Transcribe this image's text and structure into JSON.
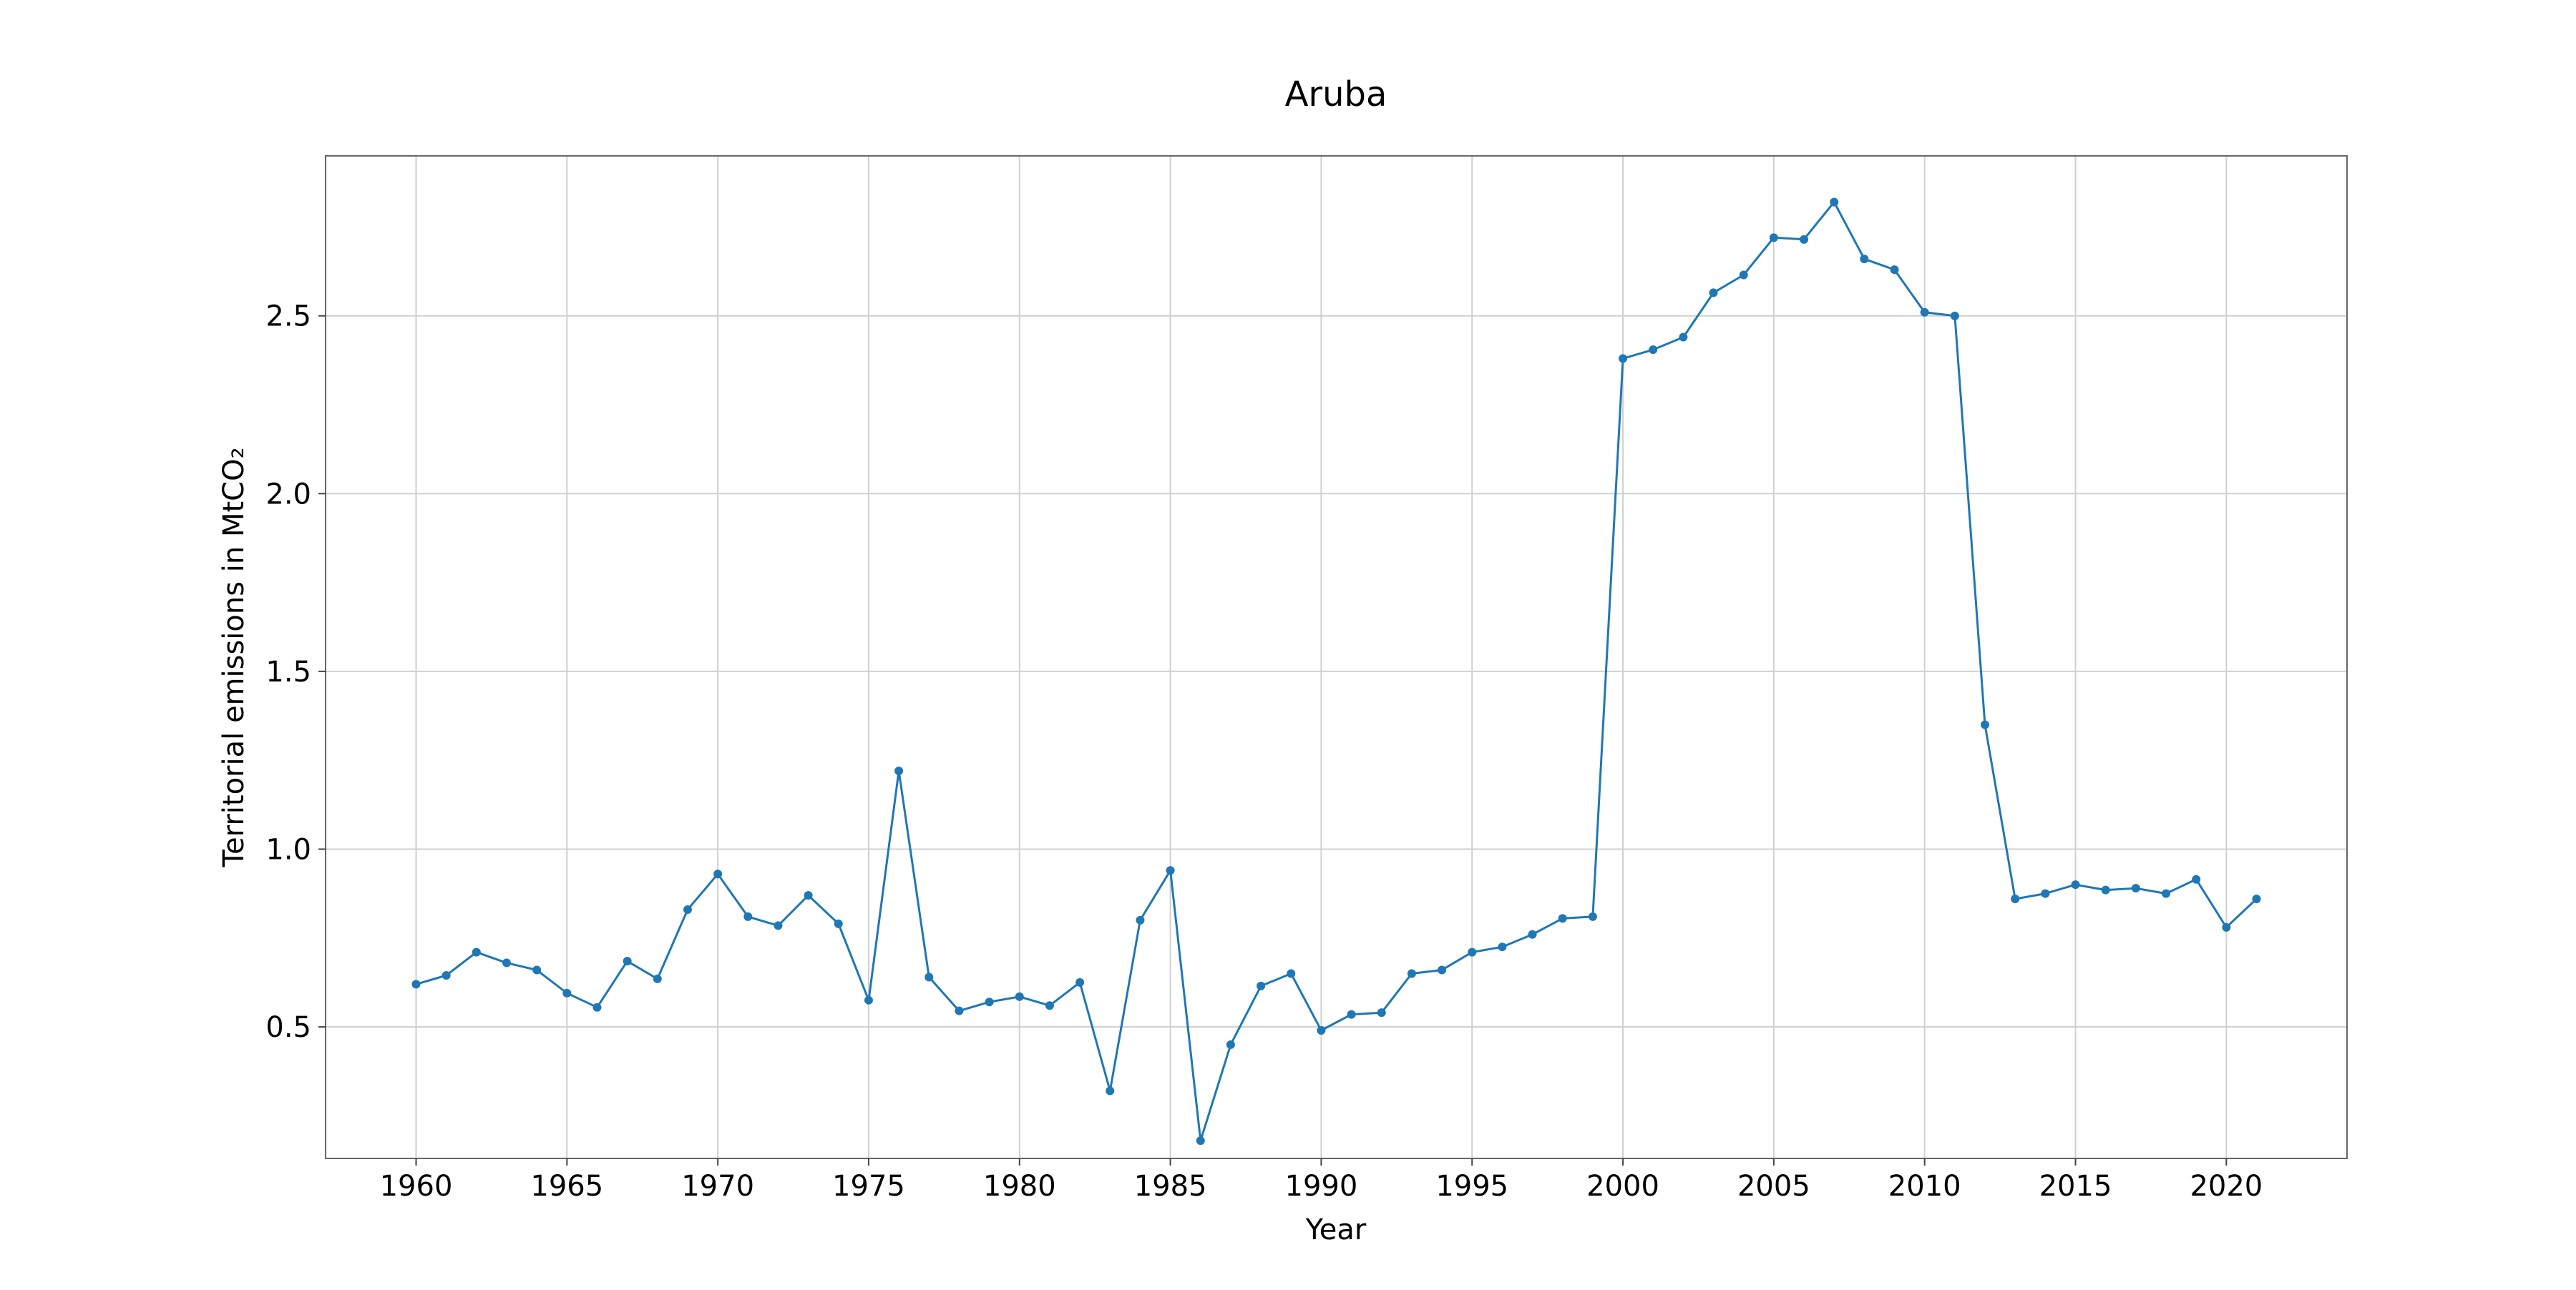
{
  "chart_data": {
    "type": "line",
    "title": "Aruba",
    "xlabel": "Year",
    "ylabel": "Territorial emissions in MtCO₂",
    "xlim": [
      1957,
      2024
    ],
    "ylim": [
      0.13,
      2.95
    ],
    "x_ticks": [
      1960,
      1965,
      1970,
      1975,
      1980,
      1985,
      1990,
      1995,
      2000,
      2005,
      2010,
      2015,
      2020
    ],
    "y_ticks": [
      0.5,
      1.0,
      1.5,
      2.0,
      2.5
    ],
    "y_tick_labels": [
      "0.5",
      "1.0",
      "1.5",
      "2.0",
      "2.5"
    ],
    "grid": true,
    "legend": "none",
    "series": [
      {
        "color": "#1f77b4",
        "marker": "circle",
        "x": [
          1960,
          1961,
          1962,
          1963,
          1964,
          1965,
          1966,
          1967,
          1968,
          1969,
          1970,
          1971,
          1972,
          1973,
          1974,
          1975,
          1976,
          1977,
          1978,
          1979,
          1980,
          1981,
          1982,
          1983,
          1984,
          1985,
          1986,
          1987,
          1988,
          1989,
          1990,
          1991,
          1992,
          1993,
          1994,
          1995,
          1996,
          1997,
          1998,
          1999,
          2000,
          2001,
          2002,
          2003,
          2004,
          2005,
          2006,
          2007,
          2008,
          2009,
          2010,
          2011,
          2012,
          2013,
          2014,
          2015,
          2016,
          2017,
          2018,
          2019,
          2020,
          2021
        ],
        "values": [
          0.62,
          0.645,
          0.71,
          0.68,
          0.66,
          0.595,
          0.555,
          0.685,
          0.635,
          0.83,
          0.93,
          0.81,
          0.785,
          0.87,
          0.79,
          0.575,
          1.22,
          0.64,
          0.545,
          0.57,
          0.585,
          0.56,
          0.625,
          0.32,
          0.8,
          0.94,
          0.18,
          0.45,
          0.615,
          0.65,
          0.49,
          0.535,
          0.54,
          0.65,
          0.66,
          0.71,
          0.725,
          0.76,
          0.805,
          0.81,
          2.38,
          2.405,
          2.44,
          2.565,
          2.615,
          2.72,
          2.715,
          2.82,
          2.66,
          2.63,
          2.51,
          2.5,
          1.35,
          0.86,
          0.875,
          0.9,
          0.885,
          0.89,
          0.875,
          0.915,
          0.78,
          0.86
        ]
      }
    ]
  }
}
